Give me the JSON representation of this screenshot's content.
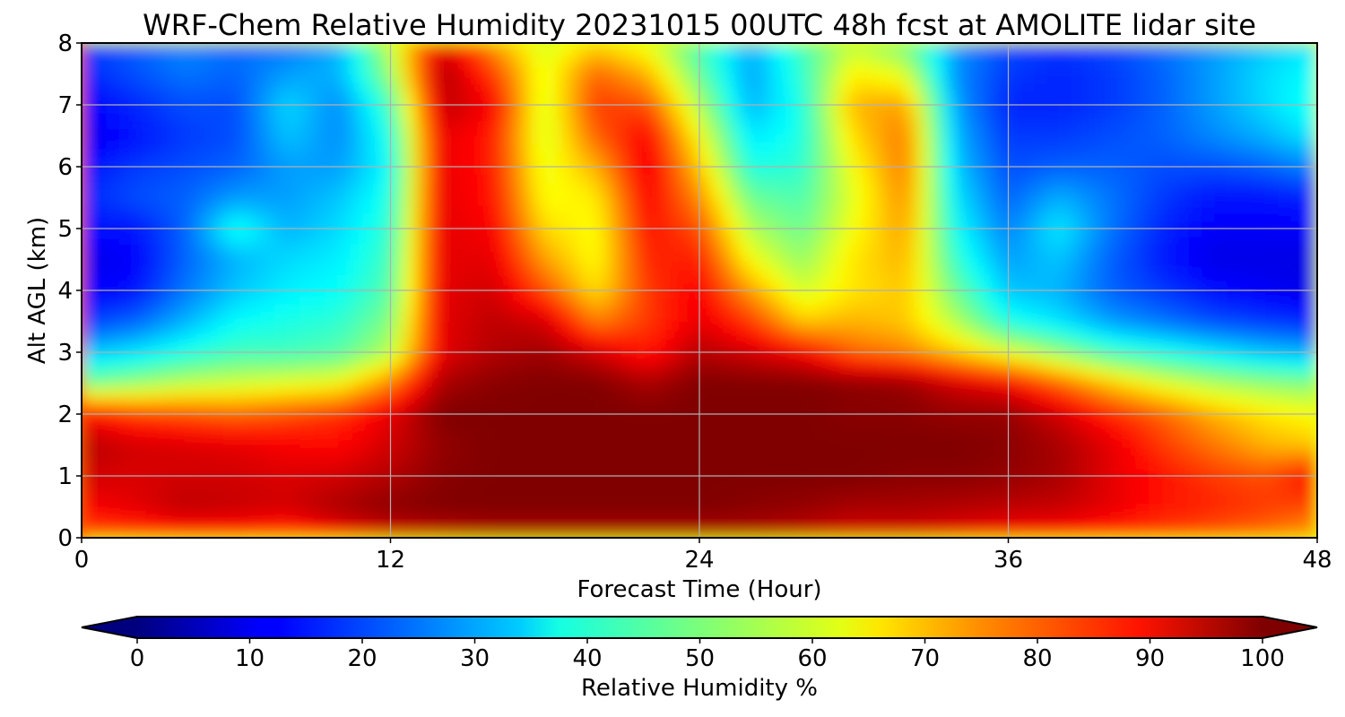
{
  "chart_data": {
    "type": "heatmap",
    "title": "WRF-Chem Relative Humidity 20231015 00UTC 48h fcst at AMOLITE lidar site",
    "xlabel": "Forecast Time (Hour)",
    "ylabel": "Alt AGL (km)",
    "xlim": [
      0,
      48
    ],
    "ylim": [
      0,
      8
    ],
    "x_ticks": [
      0,
      12,
      24,
      36,
      48
    ],
    "y_ticks": [
      0,
      1,
      2,
      3,
      4,
      5,
      6,
      7,
      8
    ],
    "grid": true,
    "x": [
      0,
      2,
      4,
      6,
      8,
      10,
      12,
      14,
      16,
      18,
      20,
      22,
      24,
      26,
      28,
      30,
      32,
      34,
      36,
      38,
      40,
      42,
      44,
      46,
      48
    ],
    "y": [
      0,
      0.5,
      1,
      1.5,
      2,
      2.5,
      3,
      3.5,
      4,
      4.5,
      5,
      5.5,
      6,
      6.5,
      7,
      7.5,
      8
    ],
    "z": [
      [
        78,
        80,
        82,
        82,
        80,
        86,
        90,
        92,
        94,
        94,
        94,
        94,
        94,
        94,
        92,
        90,
        90,
        88,
        86,
        85,
        82,
        80,
        78,
        75,
        70
      ],
      [
        88,
        90,
        94,
        93,
        92,
        96,
        99,
        100,
        100,
        100,
        100,
        100,
        100,
        99,
        98,
        96,
        96,
        95,
        94,
        93,
        90,
        86,
        84,
        82,
        80
      ],
      [
        92,
        91,
        92,
        92,
        91,
        92,
        95,
        99,
        100,
        100,
        100,
        100,
        100,
        100,
        100,
        100,
        99,
        99,
        98,
        96,
        90,
        86,
        82,
        80,
        88
      ],
      [
        95,
        92,
        91,
        90,
        88,
        87,
        92,
        98,
        100,
        100,
        100,
        100,
        100,
        100,
        100,
        100,
        100,
        100,
        99,
        96,
        90,
        82,
        76,
        70,
        68
      ],
      [
        88,
        82,
        80,
        78,
        80,
        83,
        90,
        100,
        100,
        100,
        100,
        100,
        100,
        100,
        100,
        99,
        99,
        98,
        98,
        92,
        84,
        78,
        70,
        65,
        62
      ],
      [
        48,
        52,
        56,
        58,
        60,
        62,
        75,
        96,
        99,
        100,
        100,
        96,
        100,
        100,
        100,
        99,
        98,
        92,
        88,
        78,
        68,
        60,
        55,
        52,
        50
      ],
      [
        32,
        35,
        40,
        44,
        44,
        46,
        55,
        90,
        95,
        97,
        92,
        85,
        95,
        92,
        88,
        78,
        75,
        68,
        60,
        52,
        44,
        40,
        36,
        32,
        30
      ],
      [
        18,
        22,
        30,
        38,
        40,
        42,
        50,
        90,
        94,
        92,
        75,
        82,
        90,
        82,
        68,
        70,
        68,
        55,
        40,
        35,
        28,
        24,
        20,
        18,
        16
      ],
      [
        12,
        14,
        24,
        32,
        36,
        38,
        46,
        90,
        92,
        80,
        65,
        82,
        88,
        72,
        58,
        65,
        68,
        48,
        32,
        30,
        22,
        18,
        14,
        12,
        10
      ],
      [
        10,
        12,
        22,
        30,
        34,
        36,
        44,
        90,
        90,
        72,
        62,
        84,
        85,
        62,
        52,
        65,
        70,
        42,
        28,
        32,
        22,
        15,
        10,
        10,
        10
      ],
      [
        14,
        14,
        22,
        40,
        30,
        34,
        42,
        90,
        88,
        66,
        62,
        86,
        80,
        55,
        48,
        62,
        72,
        38,
        25,
        36,
        24,
        16,
        12,
        12,
        12
      ],
      [
        16,
        20,
        22,
        28,
        28,
        32,
        40,
        90,
        86,
        62,
        64,
        88,
        74,
        48,
        45,
        60,
        74,
        35,
        22,
        30,
        24,
        18,
        14,
        14,
        16
      ],
      [
        14,
        18,
        20,
        22,
        28,
        28,
        38,
        90,
        85,
        60,
        70,
        90,
        68,
        40,
        42,
        62,
        76,
        32,
        20,
        22,
        22,
        20,
        20,
        22,
        26
      ],
      [
        10,
        14,
        18,
        20,
        32,
        26,
        40,
        90,
        85,
        58,
        78,
        88,
        62,
        35,
        40,
        66,
        76,
        30,
        18,
        18,
        20,
        22,
        26,
        30,
        36
      ],
      [
        12,
        16,
        20,
        20,
        34,
        26,
        44,
        94,
        88,
        58,
        82,
        80,
        55,
        30,
        40,
        70,
        72,
        28,
        16,
        16,
        18,
        22,
        28,
        34,
        40
      ],
      [
        16,
        20,
        24,
        22,
        28,
        30,
        52,
        96,
        82,
        60,
        78,
        70,
        48,
        28,
        42,
        64,
        60,
        26,
        18,
        16,
        18,
        22,
        28,
        34,
        38
      ],
      [
        18,
        22,
        26,
        24,
        24,
        30,
        56,
        92,
        72,
        58,
        66,
        60,
        44,
        30,
        44,
        56,
        48,
        28,
        20,
        18,
        20,
        24,
        28,
        32,
        36
      ]
    ],
    "colorbar": {
      "label": "Relative Humidity %",
      "min": 0,
      "max": 100,
      "ticks": [
        0,
        10,
        20,
        30,
        40,
        50,
        60,
        70,
        80,
        90,
        100
      ],
      "extend": "both",
      "colormap": "jet"
    }
  }
}
